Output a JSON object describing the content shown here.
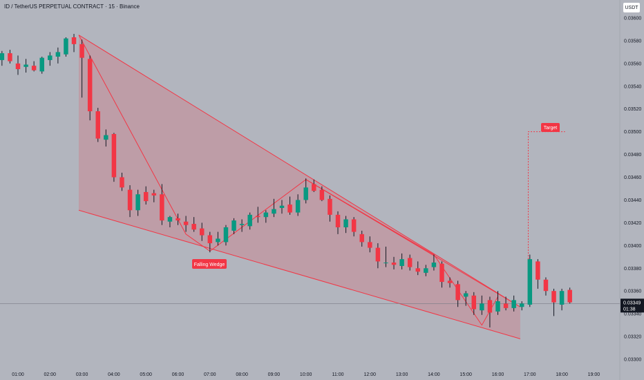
{
  "header": {
    "title": "ID / TetherUS PERPETUAL CONTRACT · 15 · Binance",
    "currency": "USDT"
  },
  "price_tag": {
    "value": "0.03349",
    "countdown": "01:38"
  },
  "annotations": {
    "pattern_label": "Falling Wedge",
    "target_label": "Target"
  },
  "colors": {
    "background": "#b2b5be",
    "up": "#089981",
    "down": "#f23645",
    "pattern_line": "#f23645",
    "pattern_fill": "#f2364530",
    "price_line": "#787b86",
    "price_tag": "#131722"
  },
  "chart_data": {
    "type": "candlestick",
    "title": "ID / TetherUS PERPETUAL CONTRACT · 15 · Binance",
    "y_axis": {
      "ticks": [
        "0.03600",
        "0.03580",
        "0.03560",
        "0.03540",
        "0.03520",
        "0.03500",
        "0.03480",
        "0.03460",
        "0.03440",
        "0.03420",
        "0.03400",
        "0.03380",
        "0.03360",
        "0.03340",
        "0.03320",
        "0.03300"
      ],
      "ylim": [
        0.033,
        0.036
      ],
      "position": "right"
    },
    "x_axis": {
      "ticks": [
        "01:00",
        "02:00",
        "03:00",
        "04:00",
        "05:00",
        "06:00",
        "07:00",
        "08:00",
        "09:00",
        "10:00",
        "11:00",
        "12:00",
        "13:00",
        "14:00",
        "15:00",
        "16:00",
        "17:00",
        "18:00",
        "19:00"
      ],
      "tick_hours": [
        1,
        2,
        3,
        4,
        5,
        6,
        7,
        8,
        9,
        10,
        11,
        12,
        13,
        14,
        15,
        16,
        17,
        18,
        19
      ]
    },
    "grid": false,
    "last_price": 0.03349,
    "candles": [
      {
        "t": 0.5,
        "o": 0.03563,
        "h": 0.03571,
        "l": 0.03558,
        "c": 0.03569
      },
      {
        "t": 0.75,
        "o": 0.03569,
        "h": 0.03572,
        "l": 0.0356,
        "c": 0.03562
      },
      {
        "t": 1.0,
        "o": 0.0356,
        "h": 0.03567,
        "l": 0.0355,
        "c": 0.03555
      },
      {
        "t": 1.25,
        "o": 0.03557,
        "h": 0.03564,
        "l": 0.03552,
        "c": 0.03559
      },
      {
        "t": 1.5,
        "o": 0.03558,
        "h": 0.03562,
        "l": 0.03553,
        "c": 0.03554
      },
      {
        "t": 1.75,
        "o": 0.03553,
        "h": 0.03566,
        "l": 0.03551,
        "c": 0.03565
      },
      {
        "t": 2.0,
        "o": 0.03563,
        "h": 0.0357,
        "l": 0.03558,
        "c": 0.03567
      },
      {
        "t": 2.25,
        "o": 0.03566,
        "h": 0.03574,
        "l": 0.0356,
        "c": 0.0357
      },
      {
        "t": 2.5,
        "o": 0.03568,
        "h": 0.03583,
        "l": 0.03566,
        "c": 0.03582
      },
      {
        "t": 2.75,
        "o": 0.03583,
        "h": 0.03586,
        "l": 0.0357,
        "c": 0.03577
      },
      {
        "t": 3.0,
        "o": 0.03577,
        "h": 0.03581,
        "l": 0.0353,
        "c": 0.03565
      },
      {
        "t": 3.25,
        "o": 0.03564,
        "h": 0.03567,
        "l": 0.0351,
        "c": 0.03518
      },
      {
        "t": 3.5,
        "o": 0.03518,
        "h": 0.03521,
        "l": 0.03491,
        "c": 0.03494
      },
      {
        "t": 3.75,
        "o": 0.03493,
        "h": 0.03502,
        "l": 0.03487,
        "c": 0.03497
      },
      {
        "t": 4.0,
        "o": 0.03498,
        "h": 0.03499,
        "l": 0.03456,
        "c": 0.0346
      },
      {
        "t": 4.25,
        "o": 0.0346,
        "h": 0.03464,
        "l": 0.03448,
        "c": 0.03451
      },
      {
        "t": 4.5,
        "o": 0.03449,
        "h": 0.03453,
        "l": 0.03425,
        "c": 0.03431
      },
      {
        "t": 4.75,
        "o": 0.03431,
        "h": 0.03449,
        "l": 0.03426,
        "c": 0.03445
      },
      {
        "t": 5.0,
        "o": 0.03447,
        "h": 0.03452,
        "l": 0.03436,
        "c": 0.03439
      },
      {
        "t": 5.25,
        "o": 0.03446,
        "h": 0.03449,
        "l": 0.03438,
        "c": 0.03444
      },
      {
        "t": 5.5,
        "o": 0.03445,
        "h": 0.03454,
        "l": 0.03418,
        "c": 0.03422
      },
      {
        "t": 5.75,
        "o": 0.03421,
        "h": 0.03426,
        "l": 0.03416,
        "c": 0.03425
      },
      {
        "t": 6.0,
        "o": 0.03424,
        "h": 0.03428,
        "l": 0.03418,
        "c": 0.03422
      },
      {
        "t": 6.25,
        "o": 0.03421,
        "h": 0.03426,
        "l": 0.03412,
        "c": 0.03418
      },
      {
        "t": 6.5,
        "o": 0.03419,
        "h": 0.03425,
        "l": 0.03412,
        "c": 0.03414
      },
      {
        "t": 6.75,
        "o": 0.03415,
        "h": 0.0342,
        "l": 0.03404,
        "c": 0.03409
      },
      {
        "t": 7.0,
        "o": 0.03409,
        "h": 0.03412,
        "l": 0.03394,
        "c": 0.03402
      },
      {
        "t": 7.25,
        "o": 0.03403,
        "h": 0.03412,
        "l": 0.034,
        "c": 0.03406
      },
      {
        "t": 7.5,
        "o": 0.03403,
        "h": 0.03418,
        "l": 0.034,
        "c": 0.03416
      },
      {
        "t": 7.75,
        "o": 0.03413,
        "h": 0.03424,
        "l": 0.0341,
        "c": 0.03422
      },
      {
        "t": 8.0,
        "o": 0.03418,
        "h": 0.03423,
        "l": 0.03412,
        "c": 0.03419
      },
      {
        "t": 8.25,
        "o": 0.03417,
        "h": 0.03429,
        "l": 0.03414,
        "c": 0.03427
      },
      {
        "t": 8.5,
        "o": 0.03426,
        "h": 0.03434,
        "l": 0.0342,
        "c": 0.03425
      },
      {
        "t": 8.75,
        "o": 0.03425,
        "h": 0.03431,
        "l": 0.0342,
        "c": 0.03429
      },
      {
        "t": 9.0,
        "o": 0.03428,
        "h": 0.03441,
        "l": 0.03425,
        "c": 0.03432
      },
      {
        "t": 9.25,
        "o": 0.03433,
        "h": 0.0344,
        "l": 0.03428,
        "c": 0.03435
      },
      {
        "t": 9.5,
        "o": 0.03436,
        "h": 0.03443,
        "l": 0.03427,
        "c": 0.03429
      },
      {
        "t": 9.75,
        "o": 0.03429,
        "h": 0.03445,
        "l": 0.03426,
        "c": 0.0344
      },
      {
        "t": 10.0,
        "o": 0.0344,
        "h": 0.03459,
        "l": 0.03437,
        "c": 0.03451
      },
      {
        "t": 10.25,
        "o": 0.03454,
        "h": 0.03458,
        "l": 0.03447,
        "c": 0.03448
      },
      {
        "t": 10.5,
        "o": 0.03449,
        "h": 0.03452,
        "l": 0.03439,
        "c": 0.0344
      },
      {
        "t": 10.75,
        "o": 0.03441,
        "h": 0.03444,
        "l": 0.03421,
        "c": 0.03427
      },
      {
        "t": 11.0,
        "o": 0.03427,
        "h": 0.0343,
        "l": 0.0341,
        "c": 0.03416
      },
      {
        "t": 11.25,
        "o": 0.03416,
        "h": 0.03426,
        "l": 0.03411,
        "c": 0.03423
      },
      {
        "t": 11.5,
        "o": 0.03423,
        "h": 0.03425,
        "l": 0.03408,
        "c": 0.03412
      },
      {
        "t": 11.75,
        "o": 0.0341,
        "h": 0.03413,
        "l": 0.03399,
        "c": 0.03403
      },
      {
        "t": 12.0,
        "o": 0.03403,
        "h": 0.03408,
        "l": 0.03394,
        "c": 0.03398
      },
      {
        "t": 12.25,
        "o": 0.03398,
        "h": 0.03402,
        "l": 0.0338,
        "c": 0.03386
      },
      {
        "t": 12.5,
        "o": 0.03385,
        "h": 0.03399,
        "l": 0.03381,
        "c": 0.03385
      },
      {
        "t": 12.75,
        "o": 0.03385,
        "h": 0.0339,
        "l": 0.03379,
        "c": 0.03383
      },
      {
        "t": 13.0,
        "o": 0.03382,
        "h": 0.03393,
        "l": 0.03379,
        "c": 0.03388
      },
      {
        "t": 13.25,
        "o": 0.03389,
        "h": 0.03392,
        "l": 0.03378,
        "c": 0.03381
      },
      {
        "t": 13.5,
        "o": 0.0338,
        "h": 0.03386,
        "l": 0.03374,
        "c": 0.03377
      },
      {
        "t": 13.75,
        "o": 0.03376,
        "h": 0.03383,
        "l": 0.03373,
        "c": 0.0338
      },
      {
        "t": 14.0,
        "o": 0.03381,
        "h": 0.03392,
        "l": 0.03378,
        "c": 0.03385
      },
      {
        "t": 14.25,
        "o": 0.03384,
        "h": 0.03386,
        "l": 0.03363,
        "c": 0.03368
      },
      {
        "t": 14.5,
        "o": 0.03369,
        "h": 0.03372,
        "l": 0.03363,
        "c": 0.03367
      },
      {
        "t": 14.75,
        "o": 0.03366,
        "h": 0.03369,
        "l": 0.03346,
        "c": 0.03352
      },
      {
        "t": 15.0,
        "o": 0.03355,
        "h": 0.0336,
        "l": 0.03347,
        "c": 0.03358
      },
      {
        "t": 15.25,
        "o": 0.03356,
        "h": 0.03359,
        "l": 0.03339,
        "c": 0.03344
      },
      {
        "t": 15.5,
        "o": 0.03343,
        "h": 0.03356,
        "l": 0.03339,
        "c": 0.03349
      },
      {
        "t": 15.75,
        "o": 0.03352,
        "h": 0.03355,
        "l": 0.03328,
        "c": 0.03341
      },
      {
        "t": 16.0,
        "o": 0.03342,
        "h": 0.0336,
        "l": 0.03339,
        "c": 0.03351
      },
      {
        "t": 16.25,
        "o": 0.03349,
        "h": 0.03355,
        "l": 0.03343,
        "c": 0.03345
      },
      {
        "t": 16.5,
        "o": 0.03345,
        "h": 0.03356,
        "l": 0.03342,
        "c": 0.03352
      },
      {
        "t": 16.75,
        "o": 0.03346,
        "h": 0.03351,
        "l": 0.03343,
        "c": 0.03349
      },
      {
        "t": 17.0,
        "o": 0.03348,
        "h": 0.03392,
        "l": 0.03346,
        "c": 0.03388
      },
      {
        "t": 17.25,
        "o": 0.03386,
        "h": 0.03388,
        "l": 0.03362,
        "c": 0.0337
      },
      {
        "t": 17.5,
        "o": 0.0337,
        "h": 0.03372,
        "l": 0.03356,
        "c": 0.0336
      },
      {
        "t": 17.75,
        "o": 0.0336,
        "h": 0.03362,
        "l": 0.03338,
        "c": 0.0335
      },
      {
        "t": 18.0,
        "o": 0.03348,
        "h": 0.03362,
        "l": 0.03343,
        "c": 0.0336
      },
      {
        "t": 18.25,
        "o": 0.03361,
        "h": 0.03363,
        "l": 0.03349,
        "c": 0.0335
      }
    ]
  }
}
